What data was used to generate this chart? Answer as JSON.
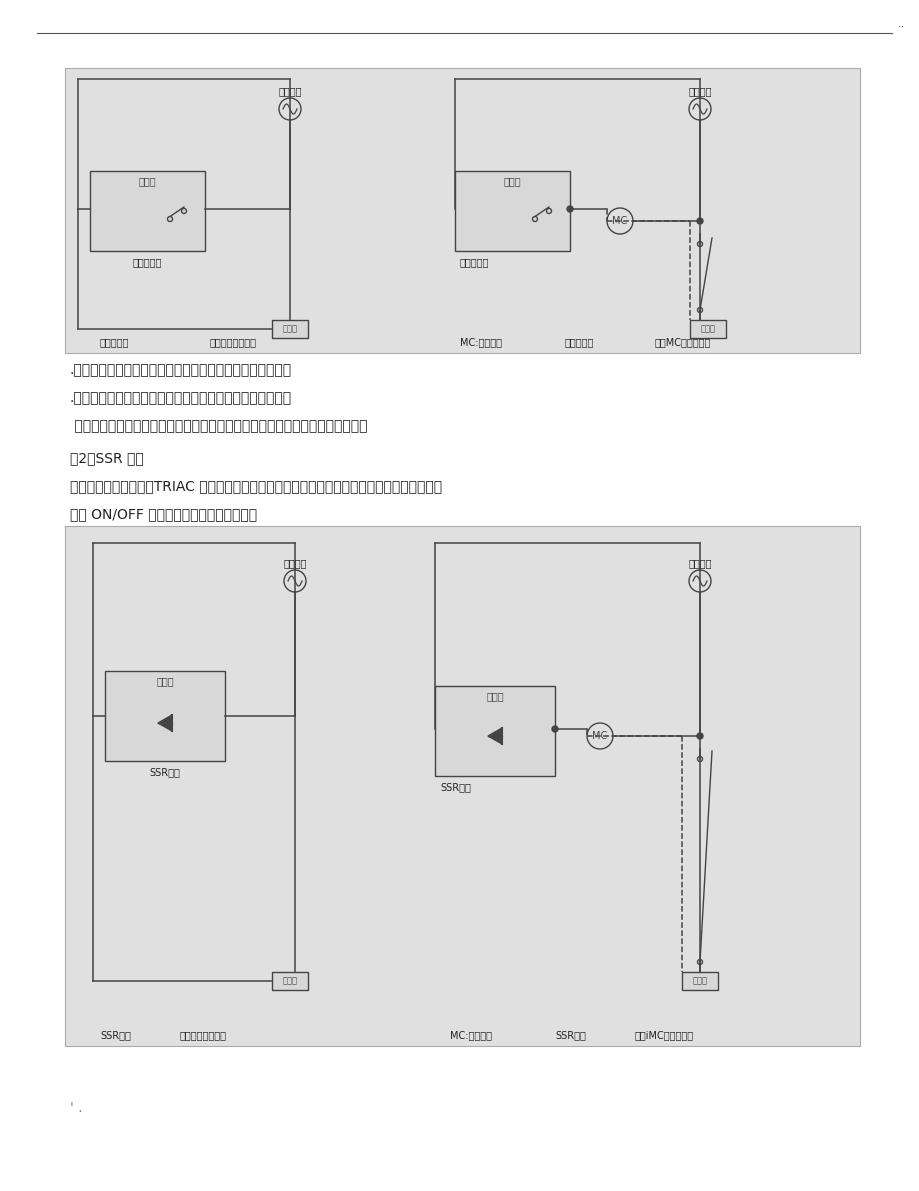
{
  "page_bg": "#ffffff",
  "line_color": "#444444",
  "diagram_bg": "#e0e0e0",
  "text_color": "#222222",
  "bullet1": ".优点：因为是无电压接点的输出，所以可以开闭多种负载。",
  "bullet2": ".缺点：因为是使用接点方式，所以有开闭次数的寿命限制。",
  "bullet3": " 寿命因负载的种类、开闭电压、电流、开闭频率、开闭相位、环境等因素而异。",
  "section2_title": "（2）SSR 输出",
  "section2_body1": "借由使用半导体元件（TRIAC 等）的无接点继电器可直接开闭交流电压，如图。温控器的控制方",
  "section2_body2": "式为 ON/OFF 控制（时间分割比例控制）。",
  "page_num": ".."
}
